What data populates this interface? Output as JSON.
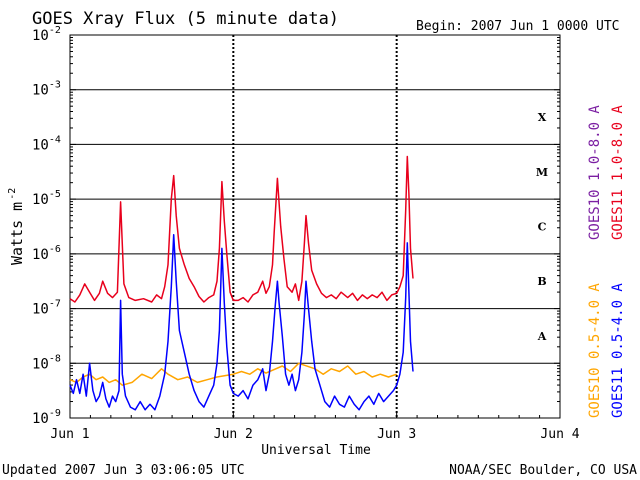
{
  "chart_data": {
    "type": "line",
    "title": "GOES Xray Flux (5 minute data)",
    "begin_label": "Begin:  2007 Jun 1 0000 UTC",
    "xlabel": "Universal Time",
    "ylabel": "Watts m",
    "ylabel_exp": "-2",
    "x_ticks": [
      "Jun 1",
      "Jun 2",
      "Jun 3",
      "Jun 4"
    ],
    "xlim_days": [
      0,
      3
    ],
    "y_ticks": [
      {
        "base": "10",
        "exp": "-2",
        "log": -2
      },
      {
        "base": "10",
        "exp": "-3",
        "log": -3
      },
      {
        "base": "10",
        "exp": "-4",
        "log": -4
      },
      {
        "base": "10",
        "exp": "-5",
        "log": -5
      },
      {
        "base": "10",
        "exp": "-6",
        "log": -6
      },
      {
        "base": "10",
        "exp": "-7",
        "log": -7
      },
      {
        "base": "10",
        "exp": "-8",
        "log": -8
      },
      {
        "base": "10",
        "exp": "-9",
        "log": -9
      }
    ],
    "ylim_log": [
      -9,
      -2
    ],
    "flare_classes": [
      {
        "label": "X",
        "log": -3.5
      },
      {
        "label": "M",
        "log": -4.5
      },
      {
        "label": "C",
        "log": -5.5
      },
      {
        "label": "B",
        "log": -6.5
      },
      {
        "label": "A",
        "log": -7.5
      }
    ],
    "legend_long": [
      {
        "label": "GOES10 1.0-8.0 A",
        "color": "#7b1fa2"
      },
      {
        "label": "GOES11 1.0-8.0 A",
        "color": "#e8001c"
      }
    ],
    "legend_short": [
      {
        "label": "GOES10 0.5-4.0 A",
        "color": "#ffa500"
      },
      {
        "label": "GOES11 0.5-4.0 A",
        "color": "#0000ff"
      }
    ],
    "series": [
      {
        "name": "GOES11 1.0-8.0 A",
        "color": "#e8001c",
        "points": [
          [
            0.0,
            -6.82
          ],
          [
            0.03,
            -6.88
          ],
          [
            0.06,
            -6.75
          ],
          [
            0.09,
            -6.55
          ],
          [
            0.12,
            -6.7
          ],
          [
            0.15,
            -6.85
          ],
          [
            0.18,
            -6.72
          ],
          [
            0.2,
            -6.5
          ],
          [
            0.23,
            -6.72
          ],
          [
            0.26,
            -6.8
          ],
          [
            0.29,
            -6.7
          ],
          [
            0.31,
            -5.05
          ],
          [
            0.33,
            -6.55
          ],
          [
            0.36,
            -6.8
          ],
          [
            0.4,
            -6.85
          ],
          [
            0.45,
            -6.82
          ],
          [
            0.5,
            -6.88
          ],
          [
            0.53,
            -6.75
          ],
          [
            0.56,
            -6.82
          ],
          [
            0.58,
            -6.6
          ],
          [
            0.6,
            -6.2
          ],
          [
            0.62,
            -5.0
          ],
          [
            0.635,
            -4.57
          ],
          [
            0.65,
            -5.3
          ],
          [
            0.67,
            -5.9
          ],
          [
            0.7,
            -6.2
          ],
          [
            0.73,
            -6.45
          ],
          [
            0.76,
            -6.6
          ],
          [
            0.79,
            -6.78
          ],
          [
            0.82,
            -6.88
          ],
          [
            0.85,
            -6.8
          ],
          [
            0.88,
            -6.75
          ],
          [
            0.9,
            -6.5
          ],
          [
            0.915,
            -5.9
          ],
          [
            0.93,
            -4.68
          ],
          [
            0.945,
            -5.4
          ],
          [
            0.96,
            -6.0
          ],
          [
            0.98,
            -6.7
          ],
          [
            1.0,
            -6.85
          ],
          [
            1.03,
            -6.85
          ],
          [
            1.06,
            -6.8
          ],
          [
            1.09,
            -6.88
          ],
          [
            1.12,
            -6.75
          ],
          [
            1.15,
            -6.7
          ],
          [
            1.18,
            -6.5
          ],
          [
            1.2,
            -6.72
          ],
          [
            1.22,
            -6.6
          ],
          [
            1.24,
            -6.2
          ],
          [
            1.25,
            -5.6
          ],
          [
            1.27,
            -4.62
          ],
          [
            1.29,
            -5.5
          ],
          [
            1.31,
            -6.1
          ],
          [
            1.33,
            -6.6
          ],
          [
            1.36,
            -6.7
          ],
          [
            1.38,
            -6.55
          ],
          [
            1.4,
            -6.85
          ],
          [
            1.42,
            -6.5
          ],
          [
            1.435,
            -5.8
          ],
          [
            1.445,
            -5.3
          ],
          [
            1.46,
            -5.8
          ],
          [
            1.48,
            -6.3
          ],
          [
            1.51,
            -6.55
          ],
          [
            1.54,
            -6.72
          ],
          [
            1.57,
            -6.8
          ],
          [
            1.6,
            -6.75
          ],
          [
            1.63,
            -6.82
          ],
          [
            1.66,
            -6.7
          ],
          [
            1.7,
            -6.8
          ],
          [
            1.73,
            -6.72
          ],
          [
            1.76,
            -6.85
          ],
          [
            1.79,
            -6.75
          ],
          [
            1.82,
            -6.82
          ],
          [
            1.85,
            -6.75
          ],
          [
            1.88,
            -6.8
          ],
          [
            1.91,
            -6.7
          ],
          [
            1.94,
            -6.85
          ],
          [
            1.97,
            -6.75
          ],
          [
            2.0,
            -6.72
          ],
          [
            2.02,
            -6.6
          ],
          [
            2.04,
            -6.4
          ],
          [
            2.055,
            -5.2
          ],
          [
            2.065,
            -4.22
          ],
          [
            2.075,
            -4.9
          ],
          [
            2.085,
            -5.9
          ],
          [
            2.1,
            -6.45
          ]
        ]
      },
      {
        "name": "GOES10 0.5-4.0 A",
        "color": "#ffa500",
        "points": [
          [
            0.0,
            -8.3
          ],
          [
            0.04,
            -8.35
          ],
          [
            0.08,
            -8.25
          ],
          [
            0.12,
            -8.2
          ],
          [
            0.16,
            -8.3
          ],
          [
            0.2,
            -8.25
          ],
          [
            0.24,
            -8.35
          ],
          [
            0.28,
            -8.3
          ],
          [
            0.32,
            -8.4
          ],
          [
            0.38,
            -8.35
          ],
          [
            0.44,
            -8.2
          ],
          [
            0.5,
            -8.28
          ],
          [
            0.56,
            -8.1
          ],
          [
            0.6,
            -8.2
          ],
          [
            0.66,
            -8.3
          ],
          [
            0.72,
            -8.25
          ],
          [
            0.78,
            -8.35
          ],
          [
            0.84,
            -8.3
          ],
          [
            0.9,
            -8.25
          ],
          [
            1.0,
            -8.2
          ],
          [
            1.05,
            -8.15
          ],
          [
            1.1,
            -8.2
          ],
          [
            1.15,
            -8.1
          ],
          [
            1.2,
            -8.18
          ],
          [
            1.3,
            -8.05
          ],
          [
            1.35,
            -8.15
          ],
          [
            1.4,
            -8.0
          ],
          [
            1.5,
            -8.1
          ],
          [
            1.55,
            -8.2
          ],
          [
            1.6,
            -8.1
          ],
          [
            1.65,
            -8.15
          ],
          [
            1.7,
            -8.05
          ],
          [
            1.75,
            -8.2
          ],
          [
            1.8,
            -8.15
          ],
          [
            1.85,
            -8.25
          ],
          [
            1.9,
            -8.2
          ],
          [
            1.95,
            -8.25
          ],
          [
            2.0,
            -8.2
          ]
        ]
      },
      {
        "name": "GOES11 0.5-4.0 A",
        "color": "#0000ff",
        "points": [
          [
            0.0,
            -8.4
          ],
          [
            0.02,
            -8.55
          ],
          [
            0.04,
            -8.3
          ],
          [
            0.06,
            -8.55
          ],
          [
            0.08,
            -8.2
          ],
          [
            0.1,
            -8.6
          ],
          [
            0.12,
            -8.0
          ],
          [
            0.14,
            -8.5
          ],
          [
            0.16,
            -8.7
          ],
          [
            0.18,
            -8.6
          ],
          [
            0.2,
            -8.35
          ],
          [
            0.22,
            -8.65
          ],
          [
            0.24,
            -8.8
          ],
          [
            0.26,
            -8.6
          ],
          [
            0.28,
            -8.7
          ],
          [
            0.3,
            -8.5
          ],
          [
            0.31,
            -6.85
          ],
          [
            0.32,
            -8.2
          ],
          [
            0.34,
            -8.6
          ],
          [
            0.37,
            -8.8
          ],
          [
            0.4,
            -8.85
          ],
          [
            0.43,
            -8.7
          ],
          [
            0.46,
            -8.85
          ],
          [
            0.49,
            -8.75
          ],
          [
            0.52,
            -8.85
          ],
          [
            0.55,
            -8.6
          ],
          [
            0.58,
            -8.2
          ],
          [
            0.6,
            -7.6
          ],
          [
            0.62,
            -6.6
          ],
          [
            0.635,
            -5.65
          ],
          [
            0.65,
            -6.5
          ],
          [
            0.67,
            -7.4
          ],
          [
            0.7,
            -7.8
          ],
          [
            0.73,
            -8.2
          ],
          [
            0.76,
            -8.5
          ],
          [
            0.79,
            -8.7
          ],
          [
            0.82,
            -8.8
          ],
          [
            0.85,
            -8.6
          ],
          [
            0.88,
            -8.4
          ],
          [
            0.9,
            -8.0
          ],
          [
            0.915,
            -7.4
          ],
          [
            0.93,
            -5.9
          ],
          [
            0.945,
            -6.9
          ],
          [
            0.96,
            -7.7
          ],
          [
            0.98,
            -8.4
          ],
          [
            1.0,
            -8.55
          ],
          [
            1.03,
            -8.6
          ],
          [
            1.06,
            -8.5
          ],
          [
            1.09,
            -8.65
          ],
          [
            1.12,
            -8.4
          ],
          [
            1.15,
            -8.3
          ],
          [
            1.18,
            -8.1
          ],
          [
            1.2,
            -8.5
          ],
          [
            1.22,
            -8.2
          ],
          [
            1.24,
            -7.6
          ],
          [
            1.255,
            -7.0
          ],
          [
            1.27,
            -6.5
          ],
          [
            1.28,
            -6.9
          ],
          [
            1.3,
            -7.5
          ],
          [
            1.32,
            -8.2
          ],
          [
            1.34,
            -8.4
          ],
          [
            1.36,
            -8.2
          ],
          [
            1.38,
            -8.5
          ],
          [
            1.4,
            -8.3
          ],
          [
            1.42,
            -7.8
          ],
          [
            1.435,
            -7.1
          ],
          [
            1.445,
            -6.5
          ],
          [
            1.46,
            -7.0
          ],
          [
            1.48,
            -7.6
          ],
          [
            1.5,
            -8.1
          ],
          [
            1.53,
            -8.4
          ],
          [
            1.56,
            -8.7
          ],
          [
            1.59,
            -8.8
          ],
          [
            1.62,
            -8.6
          ],
          [
            1.65,
            -8.75
          ],
          [
            1.68,
            -8.8
          ],
          [
            1.71,
            -8.6
          ],
          [
            1.74,
            -8.75
          ],
          [
            1.77,
            -8.85
          ],
          [
            1.8,
            -8.7
          ],
          [
            1.83,
            -8.6
          ],
          [
            1.86,
            -8.75
          ],
          [
            1.89,
            -8.55
          ],
          [
            1.92,
            -8.7
          ],
          [
            1.95,
            -8.6
          ],
          [
            1.98,
            -8.5
          ],
          [
            2.0,
            -8.4
          ],
          [
            2.02,
            -8.2
          ],
          [
            2.04,
            -7.8
          ],
          [
            2.055,
            -6.8
          ],
          [
            2.065,
            -5.8
          ],
          [
            2.075,
            -6.7
          ],
          [
            2.085,
            -7.6
          ],
          [
            2.1,
            -8.15
          ]
        ]
      }
    ]
  },
  "footer": {
    "updated": "Updated 2007 Jun  3 03:06:05 UTC",
    "source": "NOAA/SEC Boulder, CO USA"
  }
}
